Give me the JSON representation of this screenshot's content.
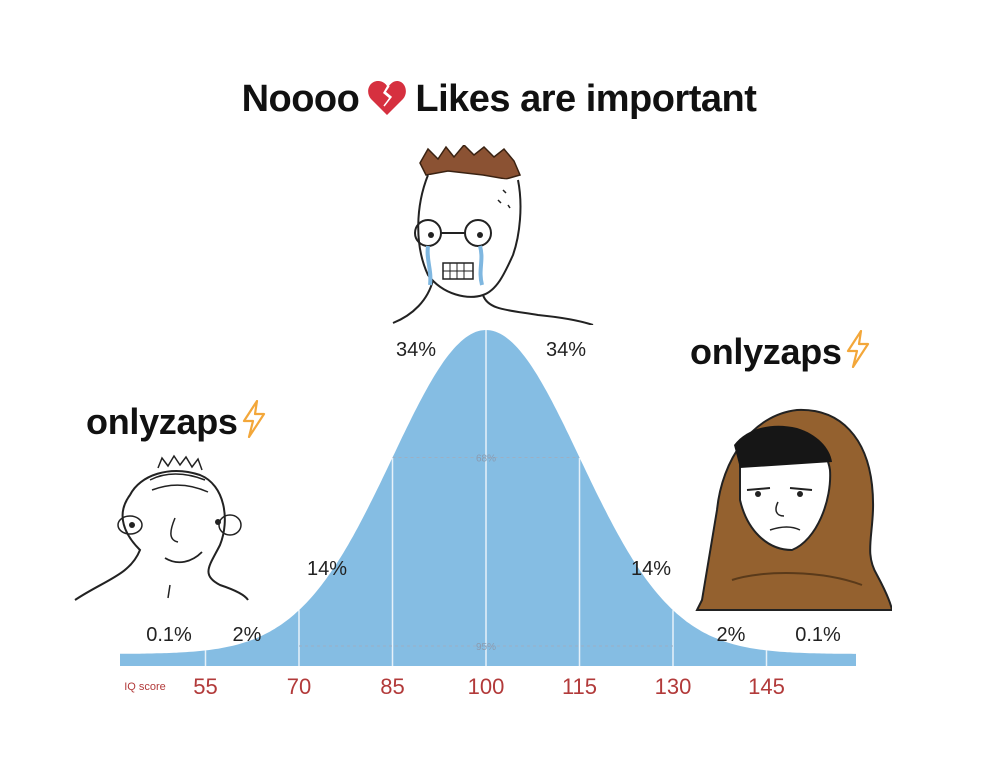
{
  "header": {
    "title_left": "Noooo",
    "title_right": "Likes are important",
    "heart_icon": "broken-heart-icon"
  },
  "labels": {
    "left": "onlyzaps",
    "right": "onlyzaps",
    "bolt_icon": "lightning-bolt-icon"
  },
  "chart_data": {
    "type": "area",
    "xlabel": "IQ score",
    "x_ticks": [
      55,
      70,
      85,
      100,
      115,
      130,
      145
    ],
    "xlim": [
      40,
      160
    ],
    "mean": 100,
    "sd": 15,
    "segment_percents": [
      "0.1%",
      "2%",
      "14%",
      "34%",
      "34%",
      "14%",
      "2%",
      "0.1%"
    ],
    "band_labels": [
      "68%",
      "95%"
    ],
    "fill_color": "#85bde3",
    "tick_color": "#b23a3a"
  }
}
